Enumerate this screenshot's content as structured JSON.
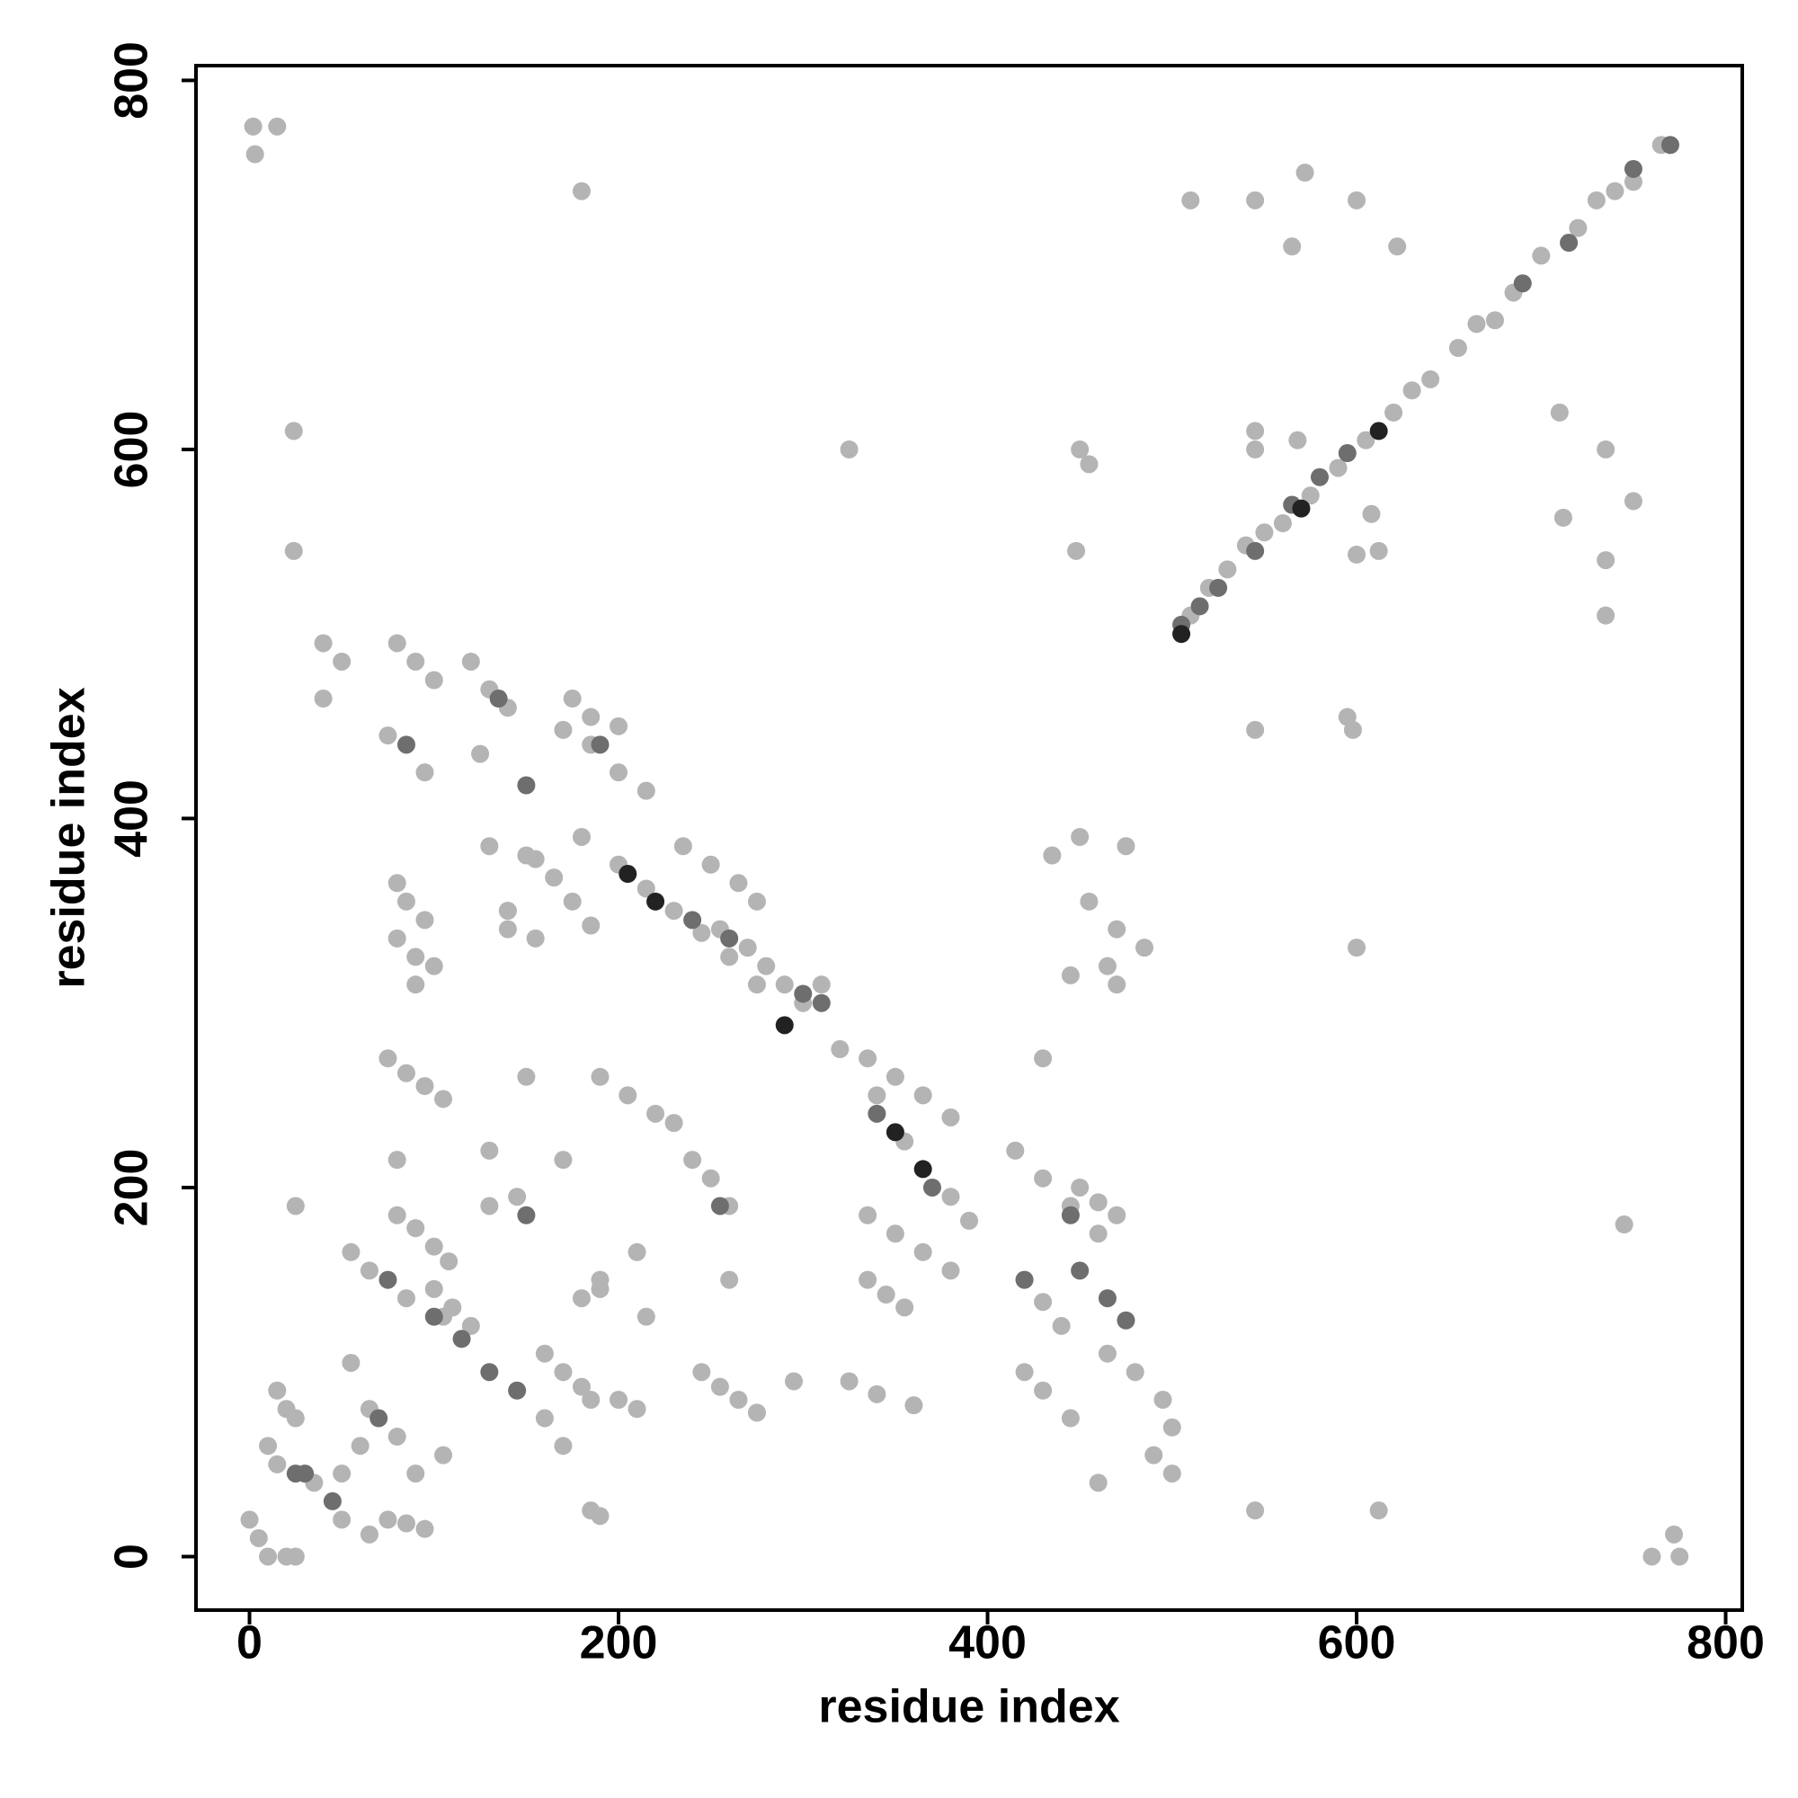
{
  "chart_data": {
    "type": "scatter",
    "xlabel": "residue index",
    "ylabel": "residue index",
    "xlim": [
      -29,
      809
    ],
    "ylim": [
      -29,
      808
    ],
    "xticks": [
      0,
      200,
      400,
      600,
      800
    ],
    "yticks": [
      0,
      200,
      400,
      600,
      800
    ],
    "grid": false,
    "series": [
      {
        "color": "#b4b4b4",
        "x": [
          510,
          520,
          530,
          540,
          550,
          560,
          575,
          590,
          605,
          620,
          630,
          640,
          655,
          665,
          675,
          685,
          700,
          720,
          730,
          740,
          750,
          765,
          510,
          545,
          565,
          572,
          600,
          622,
          710,
          712,
          735,
          735,
          735,
          750,
          600,
          608,
          612,
          545,
          545,
          568,
          595,
          598,
          545,
          600,
          745,
          545,
          612,
          760,
          772,
          775,
          2,
          15,
          3,
          24,
          24,
          180,
          325,
          450,
          455,
          448,
          180,
          200,
          215,
          230,
          245,
          260,
          275,
          300,
          310,
          320,
          340,
          355,
          380,
          390,
          155,
          165,
          175,
          185,
          235,
          250,
          265,
          275,
          255,
          270,
          280,
          290,
          335,
          350,
          365,
          380,
          335,
          350,
          365,
          380,
          335,
          345,
          355,
          325,
          340,
          360,
          415,
          430,
          445,
          460,
          420,
          430,
          440,
          465,
          480,
          495,
          420,
          430,
          445,
          450,
          460,
          470,
          435,
          450,
          475,
          455,
          470,
          485,
          465,
          470,
          445,
          430,
          80,
          90,
          100,
          75,
          95,
          120,
          130,
          140,
          125,
          140,
          175,
          185,
          200,
          170,
          185,
          200,
          215,
          40,
          50,
          40,
          80,
          85,
          95,
          80,
          90,
          100,
          90,
          130,
          140,
          150,
          140,
          155,
          75,
          85,
          95,
          105,
          150,
          190,
          205,
          220,
          230,
          80,
          130,
          170,
          25,
          130,
          145,
          80,
          90,
          100,
          108,
          55,
          65,
          85,
          105,
          100,
          110,
          120,
          160,
          170,
          180,
          185,
          160,
          170,
          180,
          190,
          190,
          210,
          215,
          240,
          250,
          260,
          260,
          245,
          255,
          265,
          275,
          200,
          210,
          295,
          15,
          20,
          25,
          10,
          15,
          35,
          50,
          60,
          50,
          65,
          80,
          55,
          75,
          85,
          95,
          90,
          105,
          0,
          5,
          10,
          20,
          25,
          65,
          185,
          190,
          500,
          490,
          460,
          500
        ],
        "values": [
          510,
          525,
          535,
          548,
          555,
          560,
          575,
          590,
          605,
          620,
          632,
          638,
          655,
          668,
          670,
          685,
          705,
          720,
          735,
          740,
          745,
          765,
          735,
          735,
          710,
          750,
          735,
          710,
          620,
          563,
          600,
          540,
          510,
          572,
          543,
          565,
          545,
          600,
          610,
          605,
          455,
          448,
          448,
          330,
          180,
          25,
          25,
          0,
          12,
          0,
          775,
          775,
          760,
          610,
          545,
          740,
          600,
          600,
          592,
          545,
          390,
          375,
          362,
          350,
          338,
          325,
          310,
          300,
          310,
          275,
          250,
          225,
          195,
          182,
          378,
          368,
          355,
          342,
          385,
          375,
          365,
          355,
          340,
          330,
          320,
          310,
          270,
          260,
          250,
          238,
          185,
          175,
          165,
          155,
          150,
          142,
          135,
          95,
          88,
          82,
          220,
          205,
          190,
          175,
          150,
          138,
          125,
          110,
          100,
          85,
          100,
          90,
          75,
          200,
          192,
          185,
          380,
          390,
          385,
          355,
          340,
          330,
          320,
          310,
          315,
          270,
          495,
          485,
          475,
          445,
          425,
          485,
          470,
          460,
          435,
          350,
          465,
          455,
          450,
          448,
          440,
          425,
          415,
          495,
          485,
          465,
          365,
          355,
          345,
          335,
          325,
          320,
          310,
          385,
          350,
          380,
          340,
          335,
          270,
          262,
          255,
          248,
          260,
          260,
          250,
          240,
          235,
          215,
          220,
          215,
          190,
          190,
          195,
          185,
          178,
          168,
          160,
          165,
          155,
          140,
          130,
          145,
          135,
          125,
          110,
          100,
          92,
          85,
          75,
          60,
          140,
          150,
          145,
          165,
          130,
          215,
          205,
          190,
          150,
          100,
          92,
          85,
          78,
          85,
          80,
          95,
          90,
          80,
          75,
          60,
          50,
          40,
          20,
          60,
          45,
          80,
          65,
          105,
          20,
          18,
          15,
          45,
          55,
          20,
          10,
          0,
          0,
          0,
          12,
          25,
          22,
          45,
          55,
          40,
          70
        ]
      },
      {
        "color": "#6e6e6e",
        "x": [
          505,
          515,
          525,
          545,
          565,
          580,
          595,
          715,
          750,
          770,
          690,
          240,
          260,
          300,
          310,
          340,
          370,
          75,
          100,
          115,
          130,
          145,
          450,
          465,
          475,
          420,
          445,
          70,
          30,
          45,
          85,
          135,
          150,
          190,
          255,
          150,
          25
        ],
        "values": [
          505,
          515,
          525,
          545,
          570,
          585,
          598,
          712,
          752,
          765,
          690,
          345,
          335,
          305,
          300,
          240,
          200,
          150,
          130,
          118,
          100,
          90,
          155,
          140,
          128,
          150,
          185,
          75,
          45,
          30,
          440,
          465,
          418,
          440,
          190,
          185,
          45
        ]
      },
      {
        "color": "#222222",
        "x": [
          505,
          570,
          612,
          205,
          220,
          350,
          365,
          290
        ],
        "values": [
          500,
          568,
          610,
          370,
          355,
          230,
          210,
          288
        ]
      }
    ]
  }
}
